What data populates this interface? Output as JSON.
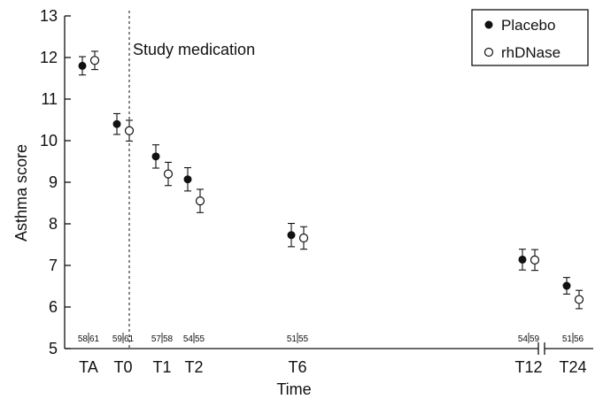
{
  "chart_data": {
    "type": "scatter",
    "ylabel": "Asthma score",
    "xlabel": "Time",
    "ylim": [
      5,
      13
    ],
    "yticks": [
      5,
      6,
      7,
      8,
      9,
      10,
      11,
      12,
      13
    ],
    "categories": [
      "TA",
      "T0",
      "T1",
      "T2",
      "T6",
      "T12",
      "T24"
    ],
    "annotation": "Study medication",
    "legend_position": "top-right",
    "axis_break_between": [
      "T12",
      "T24"
    ],
    "series": [
      {
        "name": "Placebo",
        "marker": "filled-circle",
        "color": "#111111",
        "values": [
          11.8,
          10.4,
          9.62,
          9.07,
          7.73,
          7.14,
          6.51
        ],
        "error": [
          0.22,
          0.25,
          0.28,
          0.28,
          0.28,
          0.25,
          0.2
        ]
      },
      {
        "name": "rhDNase",
        "marker": "open-circle",
        "color": "#111111",
        "values": [
          11.93,
          10.24,
          9.2,
          8.55,
          7.66,
          7.13,
          6.18
        ],
        "error": [
          0.22,
          0.25,
          0.28,
          0.28,
          0.27,
          0.25,
          0.22
        ]
      }
    ],
    "sample_sizes": [
      {
        "category": "TA",
        "placebo": "58",
        "rhdnase": "61"
      },
      {
        "category": "T0",
        "placebo": "59",
        "rhdnase": "61"
      },
      {
        "category": "T1",
        "placebo": "57",
        "rhdnase": "58"
      },
      {
        "category": "T2",
        "placebo": "54",
        "rhdnase": "55"
      },
      {
        "category": "T6",
        "placebo": "51",
        "rhdnase": "55"
      },
      {
        "category": "T12",
        "placebo": "54",
        "rhdnase": "59"
      },
      {
        "category": "T24",
        "placebo": "51",
        "rhdnase": "56"
      }
    ]
  }
}
